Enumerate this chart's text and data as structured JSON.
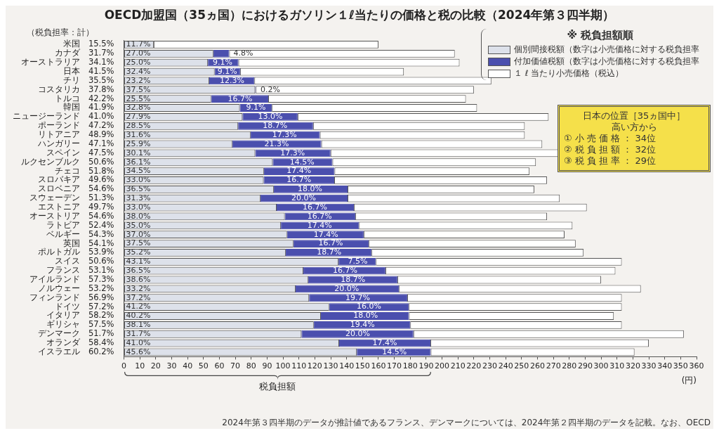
{
  "chart_data": {
    "type": "bar",
    "orientation": "horizontal",
    "stacked": true,
    "title": "OECD加盟国（35ヵ国）におけるガソリン１ℓ当たりの価格と税の比較（2024年第３四半期）",
    "categories": [
      "米国　15.5%",
      "カナダ　31.7%",
      "オーストラリア　34.1%",
      "日本　41.5%",
      "チリ　35.5%",
      "コスタリカ　37.8%",
      "トルコ　42.2%",
      "韓国　41.9%",
      "ニュージーランド　41.0%",
      "ポーランド　47.2%",
      "リトアニア　48.9%",
      "ハンガリー　47.1%",
      "スペイン　47.5%",
      "ルクセンブルク　50.6%",
      "チェコ　51.8%",
      "スロバキア　49.6%",
      "スロベニア　54.6%",
      "スウェーデン　51.3%",
      "エストニア　49.7%",
      "オーストリア　54.6%",
      "ラトビア　52.4%",
      "ベルギー　54.3%",
      "英国　54.1%",
      "ポルトガル　53.9%",
      "スイス　50.6%",
      "フランス　53.1%",
      "アイルランド　57.3%",
      "ノルウェー　53.2%",
      "フィンランド　56.9%",
      "ドイツ　57.2%",
      "イタリア　58.2%",
      "ギリシャ　57.5%",
      "デンマーク　51.7%",
      "オランダ　58.4%",
      "イスラエル　60.2%"
    ],
    "series": [
      {
        "name": "個別間接税額（数字は小売価格に対する税負担率",
        "color": "#dde1ea",
        "values": [
          18.7,
          56.2,
          52.8,
          57.0,
          53.6,
          82.5,
          54.8,
          72.8,
          74.5,
          71.8,
          79.6,
          68.1,
          82.5,
          93.5,
          88.0,
          87.8,
          94.2,
          85.8,
          96.0,
          101.1,
          98.7,
          102.5,
          106.5,
          101.7,
          134.9,
          112.8,
          115.8,
          107.9,
          116.4,
          129.0,
          123.8,
          119.3,
          111.6,
          135.3,
          146.4
        ]
      },
      {
        "name": "付加価値税額（数字は小売価格に対する税負担率",
        "color": "#4b4fae",
        "values": [
          null,
          10.0,
          19.2,
          16.0,
          28.4,
          0.4,
          35.9,
          20.2,
          34.7,
          47.1,
          43.6,
          56.0,
          47.4,
          37.6,
          44.4,
          44.4,
          46.4,
          54.8,
          48.6,
          44.4,
          49.1,
          48.2,
          47.4,
          54.0,
          23.5,
          51.6,
          56.1,
          65.0,
          61.7,
          50.1,
          55.4,
          60.7,
          70.4,
          57.4,
          46.5
        ]
      },
      {
        "name": "１ ℓ 当たり小売価格（税込）",
        "color": "#ffffff",
        "values": [
          141.3,
          141.8,
          139.0,
          103.0,
          149.0,
          137.1,
          124.3,
          129.0,
          157.8,
          133.1,
          128.8,
          138.9,
          144.1,
          127.9,
          122.6,
          133.8,
          117.4,
          133.4,
          146.4,
          120.5,
          134.2,
          126.3,
          130.1,
          133.3,
          154.6,
          144.6,
          128.1,
          152.1,
          134.9,
          133.9,
          128.8,
          133.0,
          170.0,
          137.3,
          128.1
        ]
      }
    ],
    "xlim": [
      0,
      360
    ],
    "xticks": [
      0,
      10,
      20,
      30,
      40,
      50,
      60,
      70,
      80,
      90,
      100,
      110,
      120,
      130,
      140,
      150,
      160,
      170,
      180,
      190,
      200,
      210,
      220,
      230,
      240,
      250,
      260,
      270,
      280,
      290,
      300,
      310,
      320,
      330,
      340,
      350,
      360
    ],
    "xlabel": "(円)",
    "grid": false,
    "legend": "top right",
    "legend_title": "※ 税負担額順",
    "annotations": [
      "（税負担率：計）",
      "日本の位置［35ヵ国中］",
      "高い方から",
      "① 小 売 価 格 ： 34位",
      "② 税 負 担 額 ： 32位",
      "③ 税 負 担 率 ： 29位",
      "税負担額",
      "2024年第３四半期のデータが推計値であるフランス、デンマークについては、2024年第２四半期のデータを記載。なお、OECD",
      {
        "text": "11.7%",
        "x": 9,
        "y": "米国　15.5%"
      },
      {
        "text": "27.0%",
        "x": 9,
        "y": "カナダ　31.7%"
      },
      {
        "text": "25.0%",
        "x": 9,
        "y": "オーストラリア　34.1%"
      },
      {
        "text": "32.4%",
        "x": 9,
        "y": "日本　41.5%"
      },
      {
        "text": "23.2%",
        "x": 9,
        "y": "チリ　35.5%"
      },
      {
        "text": "37.5%",
        "x": 9,
        "y": "コスタリカ　37.8%"
      },
      {
        "text": "25.5%",
        "x": 9,
        "y": "トルコ　42.2%"
      },
      {
        "text": "32.8%",
        "x": 9,
        "y": "韓国　41.9%"
      },
      {
        "text": "27.9%",
        "x": 9,
        "y": "ニュージーランド　41.0%"
      },
      {
        "text": "28.5%",
        "x": 9,
        "y": "ポーランド　47.2%"
      },
      {
        "text": "31.6%",
        "x": 9,
        "y": "リトアニア　48.9%"
      },
      {
        "text": "25.9%",
        "x": 9,
        "y": "ハンガリー　47.1%"
      },
      {
        "text": "30.1%",
        "x": 9,
        "y": "スペイン　47.5%"
      },
      {
        "text": "36.1%",
        "x": 9,
        "y": "ルクセンブルク　50.6%"
      },
      {
        "text": "34.5%",
        "x": 9,
        "y": "チェコ　51.8%"
      },
      {
        "text": "33.0%",
        "x": 9,
        "y": "スロバキア　49.6%"
      },
      {
        "text": "36.5%",
        "x": 9,
        "y": "スロベニア　54.6%"
      },
      {
        "text": "31.3%",
        "x": 9,
        "y": "スウェーデン　51.3%"
      },
      {
        "text": "33.0%",
        "x": 9,
        "y": "エストニア　49.7%"
      },
      {
        "text": "38.0%",
        "x": 9,
        "y": "オーストリア　54.6%"
      },
      {
        "text": "35.0%",
        "x": 9,
        "y": "ラトビア　52.4%"
      },
      {
        "text": "37.0%",
        "x": 9,
        "y": "ベルギー　54.3%"
      },
      {
        "text": "37.5%",
        "x": 9,
        "y": "英国　54.1%"
      },
      {
        "text": "35.2%",
        "x": 9,
        "y": "ポルトガル　53.9%"
      },
      {
        "text": "43.1%",
        "x": 9,
        "y": "スイス　50.6%"
      },
      {
        "text": "36.5%",
        "x": 9,
        "y": "フランス　53.1%"
      },
      {
        "text": "38.6%",
        "x": 9,
        "y": "アイルランド　57.3%"
      },
      {
        "text": "33.2%",
        "x": 9,
        "y": "ノルウェー　53.2%"
      },
      {
        "text": "37.2%",
        "x": 9,
        "y": "フィンランド　56.9%"
      },
      {
        "text": "41.2%",
        "x": 9,
        "y": "ドイツ　57.2%"
      },
      {
        "text": "40.2%",
        "x": 9,
        "y": "イタリア　58.2%"
      },
      {
        "text": "38.1%",
        "x": 9,
        "y": "ギリシャ　57.5%"
      },
      {
        "text": "31.7%",
        "x": 9,
        "y": "デンマーク　51.7%"
      },
      {
        "text": "41.0%",
        "x": 9,
        "y": "オランダ　58.4%"
      },
      {
        "text": "45.6%",
        "x": 9,
        "y": "イスラエル　60.2%"
      },
      {
        "text": "4.8%",
        "x": 75,
        "y": "カナダ　31.7%"
      },
      {
        "text": "9.1%",
        "x": 62,
        "y": "オーストラリア　34.1%"
      },
      {
        "text": "9.1%",
        "x": 65,
        "y": "日本　41.5%"
      },
      {
        "text": "12.3%",
        "x": 68,
        "y": "チリ　35.5%"
      },
      {
        "text": "0.2%",
        "x": 92,
        "y": "コスタリカ　37.8%"
      },
      {
        "text": "16.7%",
        "x": 73,
        "y": "トルコ　42.2%"
      },
      {
        "text": "9.1%",
        "x": 83,
        "y": "韓国　41.9%"
      },
      {
        "text": "13.0%",
        "x": 92,
        "y": "ニュージーランド　41.0%"
      },
      {
        "text": "18.7%",
        "x": 95,
        "y": "ポーランド　47.2%"
      },
      {
        "text": "17.3%",
        "x": 101,
        "y": "リトアニア　48.9%"
      },
      {
        "text": "21.3%",
        "x": 96,
        "y": "ハンガリー　47.1%"
      },
      {
        "text": "17.3%",
        "x": 106,
        "y": "スペイン　47.5%"
      },
      {
        "text": "14.5%",
        "x": 112,
        "y": "ルクセンブルク　50.6%"
      },
      {
        "text": "17.4%",
        "x": 110,
        "y": "チェコ　51.8%"
      },
      {
        "text": "16.7%",
        "x": 110,
        "y": "スロバキア　49.6%"
      },
      {
        "text": "18.0%",
        "x": 117,
        "y": "スロベニア　54.6%"
      },
      {
        "text": "20.0%",
        "x": 113,
        "y": "スウェーデン　51.3%"
      },
      {
        "text": "16.7%",
        "x": 120,
        "y": "エストニア　49.7%"
      },
      {
        "text": "16.7%",
        "x": 123,
        "y": "オーストリア　54.6%"
      },
      {
        "text": "17.4%",
        "x": 123,
        "y": "ラトビア　52.4%"
      },
      {
        "text": "17.4%",
        "x": 127,
        "y": "ベルギー　54.3%"
      },
      {
        "text": "16.7%",
        "x": 130,
        "y": "英国　54.1%"
      },
      {
        "text": "18.7%",
        "x": 129,
        "y": "ポルトガル　53.9%"
      },
      {
        "text": "7.5%",
        "x": 147,
        "y": "スイス　50.6%"
      },
      {
        "text": "16.7%",
        "x": 139,
        "y": "フランス　53.1%"
      },
      {
        "text": "18.7%",
        "x": 144,
        "y": "アイルランド　57.3%"
      },
      {
        "text": "20.0%",
        "x": 140,
        "y": "ノルウェー　53.2%"
      },
      {
        "text": "19.7%",
        "x": 147,
        "y": "フィンランド　56.9%"
      },
      {
        "text": "16.0%",
        "x": 154,
        "y": "ドイツ　57.2%"
      },
      {
        "text": "18.0%",
        "x": 152,
        "y": "イタリア　58.2%"
      },
      {
        "text": "19.4%",
        "x": 150,
        "y": "ギリシャ　57.5%"
      },
      {
        "text": "20.0%",
        "x": 147,
        "y": "デンマーク　51.7%"
      },
      {
        "text": "17.4%",
        "x": 164,
        "y": "オランダ　58.4%"
      },
      {
        "text": "14.5%",
        "x": 170,
        "y": "イスラエル　60.2%"
      }
    ]
  }
}
